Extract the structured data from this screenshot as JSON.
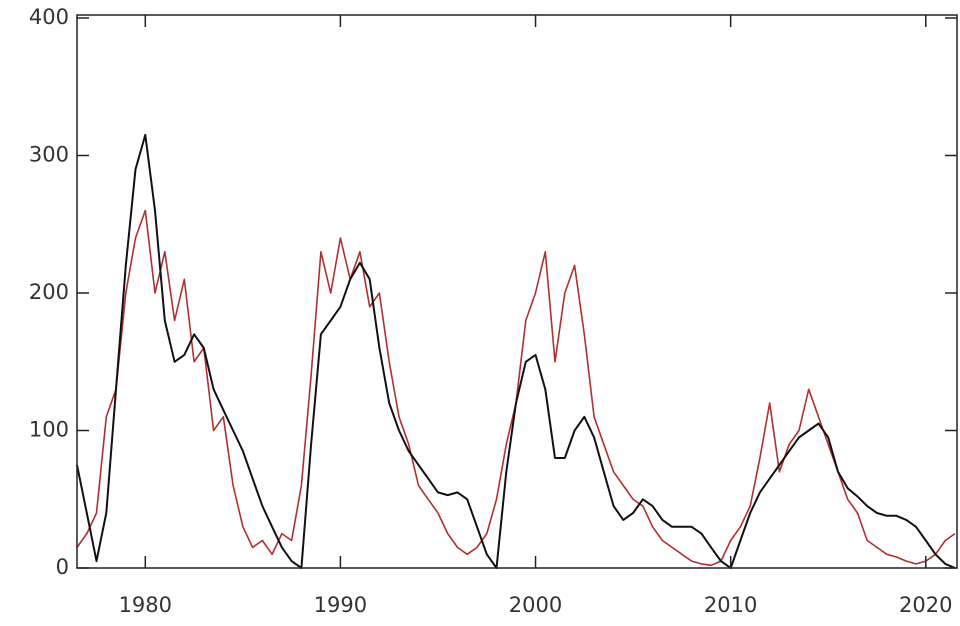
{
  "chart_data": {
    "type": "line",
    "x": [
      1976.5,
      1977,
      1977.5,
      1978,
      1978.5,
      1979,
      1979.5,
      1980,
      1980.5,
      1981,
      1981.5,
      1982,
      1982.5,
      1983,
      1983.5,
      1984,
      1984.5,
      1985,
      1985.5,
      1986,
      1986.5,
      1987,
      1987.5,
      1988,
      1988.5,
      1989,
      1989.5,
      1990,
      1990.5,
      1991,
      1991.5,
      1992,
      1992.5,
      1993,
      1993.5,
      1994,
      1994.5,
      1995,
      1995.5,
      1996,
      1996.5,
      1997,
      1997.5,
      1998,
      1998.5,
      1999,
      1999.5,
      2000,
      2000.5,
      2001,
      2001.5,
      2002,
      2002.5,
      2003,
      2003.5,
      2004,
      2004.5,
      2005,
      2005.5,
      2006,
      2006.5,
      2007,
      2007.5,
      2008,
      2008.5,
      2009,
      2009.5,
      2010,
      2010.5,
      2011,
      2011.5,
      2012,
      2012.5,
      2013,
      2013.5,
      2014,
      2014.5,
      2015,
      2015.5,
      2016,
      2016.5,
      2017,
      2017.5,
      2018,
      2018.5,
      2019,
      2019.5,
      2020,
      2020.5,
      2021,
      2021.5
    ],
    "series": [
      {
        "color": "#b03030",
        "width": 1.6,
        "values": [
          15,
          25,
          40,
          110,
          130,
          200,
          240,
          260,
          200,
          230,
          180,
          210,
          150,
          160,
          100,
          110,
          60,
          30,
          15,
          20,
          10,
          25,
          20,
          60,
          140,
          230,
          200,
          240,
          210,
          230,
          190,
          200,
          150,
          110,
          90,
          60,
          50,
          40,
          25,
          15,
          10,
          15,
          25,
          50,
          90,
          120,
          180,
          200,
          230,
          150,
          200,
          220,
          170,
          110,
          90,
          70,
          60,
          50,
          45,
          30,
          20,
          15,
          10,
          5,
          3,
          2,
          5,
          20,
          30,
          45,
          80,
          120,
          70,
          90,
          100,
          130,
          110,
          90,
          70,
          50,
          40,
          20,
          15,
          10,
          8,
          5,
          3,
          5,
          10,
          20,
          25
        ]
      },
      {
        "color": "#111111",
        "width": 2,
        "values": [
          75,
          40,
          5,
          40,
          130,
          220,
          290,
          315,
          260,
          180,
          150,
          155,
          170,
          160,
          130,
          115,
          100,
          85,
          65,
          45,
          30,
          15,
          5,
          0,
          90,
          170,
          180,
          190,
          210,
          222,
          210,
          160,
          120,
          100,
          85,
          75,
          65,
          55,
          53,
          55,
          50,
          30,
          10,
          0,
          70,
          120,
          150,
          155,
          130,
          80,
          80,
          100,
          110,
          95,
          70,
          45,
          35,
          40,
          50,
          45,
          35,
          30,
          30,
          30,
          25,
          15,
          5,
          0,
          20,
          40,
          55,
          65,
          75,
          85,
          95,
          100,
          105,
          95,
          70,
          58,
          52,
          45,
          40,
          38,
          38,
          35,
          30,
          20,
          10,
          3,
          0
        ]
      }
    ],
    "xlim": [
      1976.5,
      2021.6
    ],
    "ylim": [
      0,
      400
    ],
    "xticks": [
      1980,
      1990,
      2000,
      2010,
      2020
    ],
    "yticks": [
      0,
      100,
      200,
      300,
      400
    ]
  }
}
